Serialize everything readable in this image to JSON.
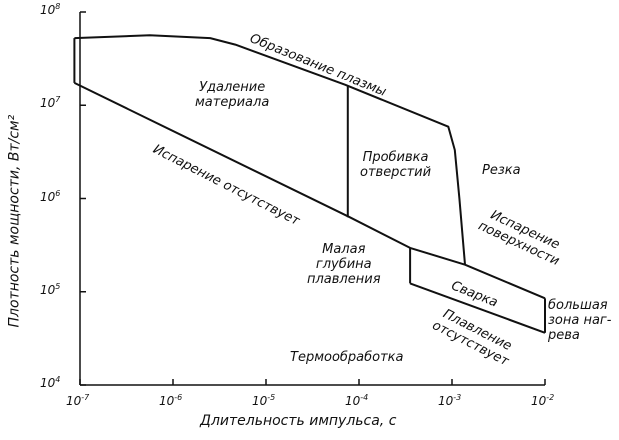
{
  "axes": {
    "xlabel": "Длительность импульса, с",
    "ylabel": "Плотность мощности, Вт/см²",
    "x_ticks": [
      {
        "base": "10",
        "exp": "-7"
      },
      {
        "base": "10",
        "exp": "-6"
      },
      {
        "base": "10",
        "exp": "-5"
      },
      {
        "base": "10",
        "exp": "-4"
      },
      {
        "base": "10",
        "exp": "-3"
      },
      {
        "base": "10",
        "exp": "-2"
      }
    ],
    "y_ticks": [
      {
        "base": "10",
        "exp": "8"
      },
      {
        "base": "10",
        "exp": "7"
      },
      {
        "base": "10",
        "exp": "6"
      },
      {
        "base": "10",
        "exp": "5"
      },
      {
        "base": "10",
        "exp": "4"
      }
    ],
    "xlim_log10": [
      -7,
      -2
    ],
    "ylim_log10": [
      4,
      8
    ]
  },
  "regions": {
    "plasma": "Образование плазмы",
    "removal_1": "Удаление",
    "removal_2": "материала",
    "no_evap": "Испарение отсутствует",
    "drilling_1": "Пробивка",
    "drilling_2": "отверстий",
    "cutting": "Резка",
    "surface_evap_1": "Испарение",
    "surface_evap_2": "поверхности",
    "shallow_1": "Малая",
    "shallow_2": "глубина",
    "shallow_3": "плавления",
    "welding": "Сварка",
    "no_melt_1": "Плавление",
    "no_melt_2": "отсутствует",
    "large_zone_1": "большая",
    "large_zone_2": "зона наг-",
    "large_zone_3": "рева",
    "heat_treat": "Термообработка"
  },
  "curves_log10": {
    "plasma_boundary": [
      [
        -7.06,
        7.72
      ],
      [
        -6.25,
        7.75
      ],
      [
        -5.6,
        7.72
      ],
      [
        -5.33,
        7.65
      ],
      [
        -4.15,
        7.22
      ],
      [
        -3.04,
        6.77
      ],
      [
        -2.97,
        6.52
      ],
      [
        -2.92,
        6.0
      ],
      [
        -2.86,
        5.29
      ]
    ],
    "left_edge": [
      [
        -7.06,
        7.72
      ],
      [
        -7.06,
        7.24
      ]
    ],
    "evaporation_threshold": [
      [
        -7.06,
        7.24
      ],
      [
        -4.1,
        5.8
      ],
      [
        -3.45,
        5.47
      ],
      [
        -2.86,
        5.29
      ],
      [
        -2.0,
        4.93
      ]
    ],
    "drilling_boundary": [
      [
        -4.12,
        7.21
      ],
      [
        -4.12,
        5.8
      ]
    ],
    "welding_left": [
      [
        -3.45,
        5.47
      ],
      [
        -3.45,
        5.09
      ]
    ],
    "melting_threshold": [
      [
        -3.45,
        5.09
      ],
      [
        -2.0,
        4.56
      ]
    ],
    "welding_right": [
      [
        -2.0,
        4.93
      ],
      [
        -2.0,
        4.56
      ]
    ]
  }
}
